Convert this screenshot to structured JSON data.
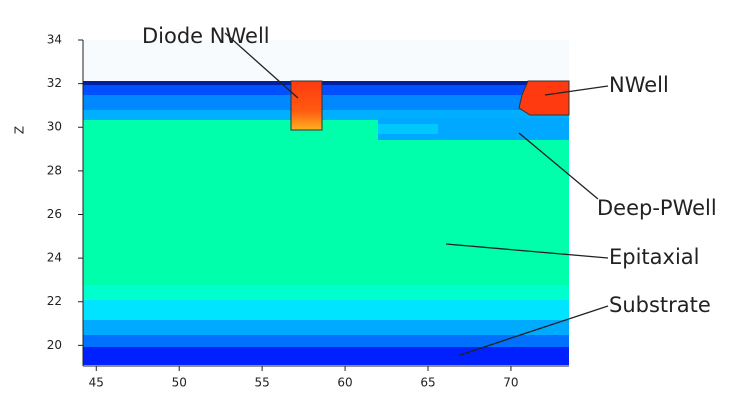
{
  "chart_data": {
    "type": "profile",
    "y_label": "Z",
    "xlim": [
      44.2,
      73.5
    ],
    "xticks": [
      45,
      50,
      55,
      60,
      65,
      70
    ],
    "ylim": [
      19.1,
      34
    ],
    "yticks": [
      20,
      22,
      24,
      26,
      28,
      30,
      32,
      34
    ],
    "annotations": [
      "Diode NWell",
      "NWell",
      "Deep-PWell",
      "Epitaxial",
      "Substrate"
    ]
  }
}
